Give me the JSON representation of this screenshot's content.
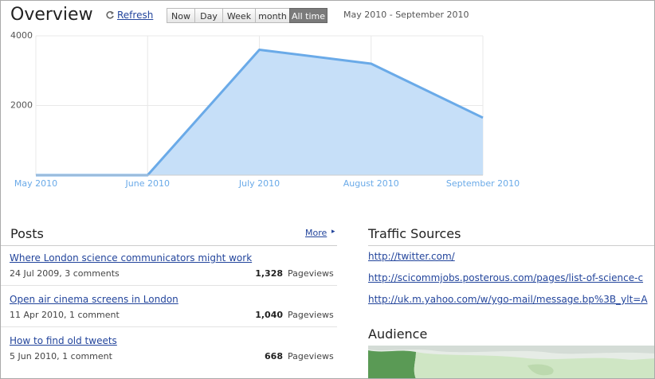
{
  "header": {
    "title": "Overview",
    "refresh": "Refresh",
    "ranges": [
      "Now",
      "Day",
      "Week",
      "month",
      "All time"
    ],
    "active_range": 4,
    "date_range": "May 2010 - September 2010"
  },
  "chart_data": {
    "type": "area",
    "categories": [
      "May 2010",
      "June 2010",
      "July 2010",
      "August 2010",
      "September 2010"
    ],
    "values": [
      0,
      0,
      3600,
      3200,
      1650
    ],
    "color": "#6aaae8",
    "fill": "#c6dff8",
    "ylim": [
      0,
      4000
    ],
    "yticks": [
      2000,
      4000
    ],
    "grid": true
  },
  "posts": {
    "title": "Posts",
    "more": "More",
    "items": [
      {
        "title": "Where London science communicators might work",
        "meta": "24 Jul 2009, 3 comments",
        "count": "1,328",
        "unit": "Pageviews"
      },
      {
        "title": "Open air cinema screens in London",
        "meta": "11 Apr 2010, 1 comment",
        "count": "1,040",
        "unit": "Pageviews"
      },
      {
        "title": "How to find old tweets",
        "meta": "5 Jun 2010, 1 comment",
        "count": "668",
        "unit": "Pageviews"
      }
    ]
  },
  "traffic": {
    "title": "Traffic Sources",
    "links": [
      "http://twitter.com/",
      "http://scicommjobs.posterous.com/pages/list-of-science-c",
      "http://uk.m.yahoo.com/w/ygo-mail/message.bp%3B_ylt=A"
    ]
  },
  "audience": {
    "title": "Audience"
  }
}
